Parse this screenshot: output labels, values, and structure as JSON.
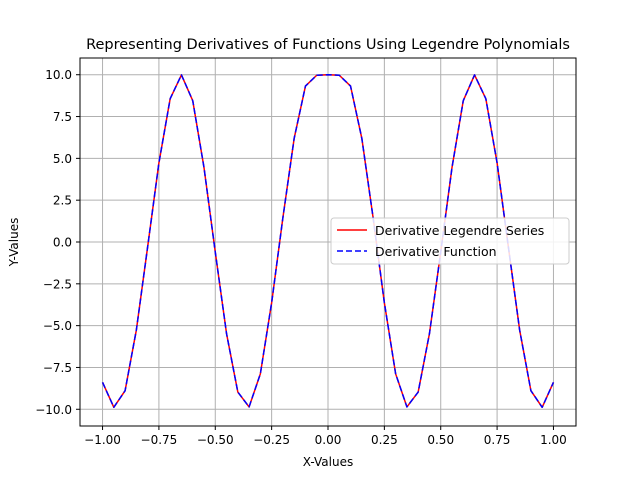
{
  "chart_data": {
    "type": "line",
    "title": "Representing Derivatives of Functions Using Legendre Polynomials",
    "xlabel": "X-Values",
    "ylabel": "Y-Values",
    "xlim": [
      -1.1,
      1.1
    ],
    "ylim": [
      -11.0,
      11.0
    ],
    "x_ticks": [
      -1.0,
      -0.75,
      -0.5,
      -0.25,
      0.0,
      0.25,
      0.5,
      0.75,
      1.0
    ],
    "x_tick_labels": [
      "−1.00",
      "−0.75",
      "−0.50",
      "−0.25",
      "0.00",
      "0.25",
      "0.50",
      "0.75",
      "1.00"
    ],
    "y_ticks": [
      -10.0,
      -7.5,
      -5.0,
      -2.5,
      0.0,
      2.5,
      5.0,
      7.5,
      10.0
    ],
    "y_tick_labels": [
      "−10.0",
      "−7.5",
      "−5.0",
      "−2.5",
      "0.0",
      "2.5",
      "5.0",
      "7.5",
      "10.0"
    ],
    "grid": true,
    "legend_position": "center-right",
    "x": [
      -1.0,
      -0.95,
      -0.9,
      -0.85,
      -0.8,
      -0.75,
      -0.7,
      -0.65,
      -0.6,
      -0.55,
      -0.5,
      -0.45,
      -0.4,
      -0.35,
      -0.3,
      -0.25,
      -0.2,
      -0.15,
      -0.1,
      -0.05,
      0.0,
      0.05,
      0.1,
      0.15,
      0.2,
      0.25,
      0.3,
      0.35,
      0.4,
      0.45,
      0.5,
      0.55,
      0.6,
      0.65,
      0.7,
      0.75,
      0.8,
      0.85,
      0.9,
      0.95,
      1.0
    ],
    "series": [
      {
        "name": "Derivative Legendre Series",
        "color": "#ff0000",
        "style": "solid",
        "values": [
          -8.39,
          -9.88,
          -8.89,
          -5.26,
          -0.29,
          4.73,
          8.57,
          9.99,
          8.45,
          4.45,
          -0.6,
          -5.48,
          -8.97,
          -9.86,
          -7.88,
          -3.63,
          1.46,
          6.2,
          9.32,
          9.97,
          10.0,
          9.97,
          9.32,
          6.2,
          1.46,
          -3.63,
          -7.88,
          -9.86,
          -8.97,
          -5.48,
          -0.6,
          4.45,
          8.45,
          9.99,
          8.57,
          4.73,
          -0.29,
          -5.26,
          -8.89,
          -9.88,
          -8.39
        ]
      },
      {
        "name": "Derivative Function",
        "color": "#0000ff",
        "style": "dashed",
        "values": [
          -8.39,
          -9.88,
          -8.89,
          -5.26,
          -0.29,
          4.73,
          8.57,
          9.99,
          8.45,
          4.45,
          -0.6,
          -5.48,
          -8.97,
          -9.86,
          -7.88,
          -3.63,
          1.46,
          6.2,
          9.32,
          9.97,
          10.0,
          9.97,
          9.32,
          6.2,
          1.46,
          -3.63,
          -7.88,
          -9.86,
          -8.97,
          -5.48,
          -0.6,
          4.45,
          8.45,
          9.99,
          8.57,
          4.73,
          -0.29,
          -5.26,
          -8.89,
          -9.88,
          -8.39
        ]
      }
    ]
  }
}
